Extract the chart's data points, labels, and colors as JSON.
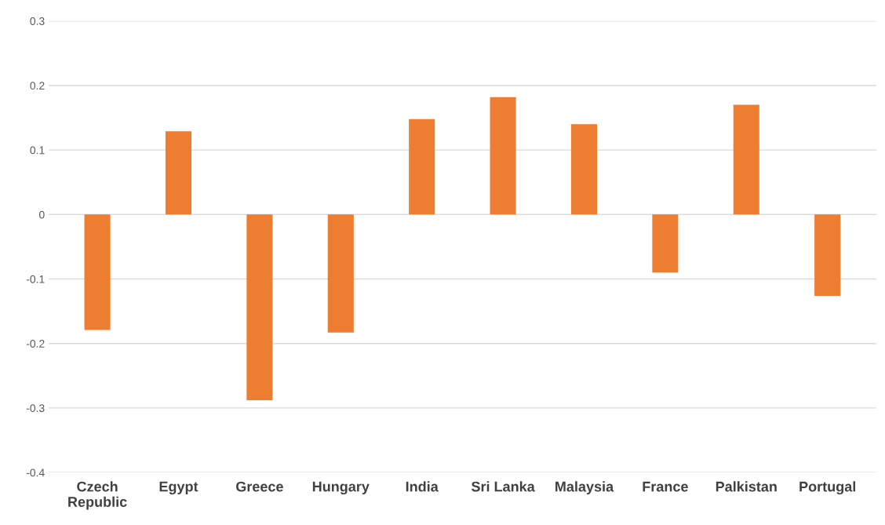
{
  "chart_data": {
    "type": "bar",
    "categories": [
      "Czech\nRepublic",
      "Egypt",
      "Greece",
      "Hungary",
      "India",
      "Sri Lanka",
      "Malaysia",
      "France",
      "Palkistan",
      "Portugal"
    ],
    "values": [
      -0.179,
      0.129,
      -0.288,
      -0.183,
      0.148,
      0.182,
      0.14,
      -0.09,
      0.17,
      -0.126
    ],
    "color": "#ed7d31",
    "ylim": [
      -0.4,
      0.3
    ],
    "yticks": [
      -0.4,
      -0.3,
      -0.2,
      -0.1,
      0,
      0.1,
      0.2,
      0.3
    ],
    "grid": "y",
    "legend": false
  }
}
